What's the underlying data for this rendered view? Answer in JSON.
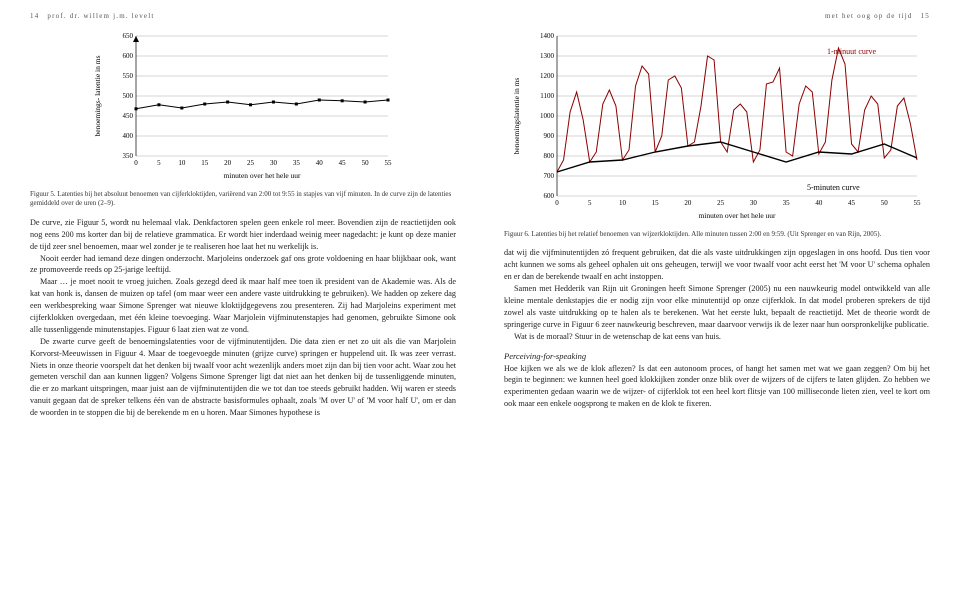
{
  "header": {
    "page_left_num": "14",
    "page_right_num": "15",
    "author": "prof. dr. willem j.m. levelt",
    "running_title": "met het oog op de tijd"
  },
  "chart_left": {
    "type": "line",
    "y_label": "benoemings-\nlatentie in ms",
    "x_label": "minuten over het hele uur",
    "x_ticks": [
      0,
      5,
      10,
      15,
      20,
      25,
      30,
      35,
      40,
      45,
      50,
      55
    ],
    "y_ticks": [
      350,
      400,
      450,
      500,
      550,
      600,
      650
    ],
    "xlim": [
      0,
      55
    ],
    "ylim": [
      350,
      650
    ],
    "series": [
      {
        "color": "#000000",
        "width": 1,
        "data": [
          468,
          478,
          470,
          480,
          485,
          478,
          485,
          480,
          490,
          488,
          485,
          490
        ]
      }
    ],
    "tick_fontsize": 7,
    "grid_color": "#aaaaaa",
    "background_color": "#ffffff"
  },
  "caption_left": "Figuur 5. Latenties bij het absoluut benoemen van cijferkloktijden, variërend van 2:00 tot 9:55 in stapjes van vijf minuten. In de curve zijn de latenties gemiddeld over de uren (2–9).",
  "body_left": [
    "De curve, zie Figuur 5, wordt nu helemaal vlak. Denkfactoren spelen geen enkele rol meer. Bovendien zijn de reactietijden ook nog eens 200 ms korter dan bij de relatieve grammatica. Er wordt hier inderdaad weinig meer nagedacht: je kunt op deze manier de tijd zeer snel benoemen, maar wel zonder je te realiseren hoe laat het nu werkelijk is.",
    "Nooit eerder had iemand deze dingen onderzocht. Marjoleins onderzoek gaf ons grote voldoening en haar blijkbaar ook, want ze promoveerde reeds op 25-jarige leeftijd.",
    "Maar … je moet nooit te vroeg juichen. Zoals gezegd deed ik maar half mee toen ik president van de Akademie was. Als de kat van honk is, dansen de muizen op tafel (om maar weer een andere vaste uitdrukking te gebruiken). We hadden op zekere dag een werkbespreking waar Simone Sprenger wat nieuwe kloktijdgegevens zou presenteren. Zij had Marjoleins experiment met cijferklokken overgedaan, met één kleine toevoeging. Waar Marjolein vijfminutenstapjes had genomen, gebruikte Simone ook alle tussenliggende minutenstapjes. Figuur 6 laat zien wat ze vond.",
    "De zwarte curve geeft de benoemingslatenties voor de vijfminutentijden. Die data zien er net zo uit als die van Marjolein Korvorst-Meeuwissen in Figuur 4. Maar de toegevoegde minuten (grijze curve) springen er huppelend uit. Ik was zeer verrast. Niets in onze theorie voorspelt dat het denken bij twaalf voor acht wezenlijk anders moet zijn dan bij tien voor acht. Waar zou het gemeten verschil dan aan kunnen liggen? Volgens Simone Sprenger ligt dat niet aan het denken bij de tussenliggende minuten, die er zo markant uitspringen, maar juist aan de vijfminutentijden die we tot dan toe steeds gebruikt hadden. Wij waren er steeds vanuit gegaan dat de spreker telkens één van de abstracte basisformules ophaalt, zoals 'M over U' of 'M voor half U', om er dan de woorden in te stoppen die bij de berekende m en u horen. Maar Simones hypothese is"
  ],
  "chart_right": {
    "type": "line",
    "y_label": "benoemingslatentie in ms",
    "x_label": "minuten over het hele uur",
    "x_ticks": [
      0,
      5,
      10,
      15,
      20,
      25,
      30,
      35,
      40,
      45,
      50,
      55
    ],
    "y_ticks": [
      600,
      700,
      800,
      900,
      1000,
      1100,
      1200,
      1300,
      1400
    ],
    "xlim": [
      0,
      55
    ],
    "ylim": [
      600,
      1400
    ],
    "series": [
      {
        "label": "1-minuut curve",
        "color": "#8b0000",
        "width": 1,
        "data": [
          720,
          780,
          1020,
          1120,
          980,
          770,
          820,
          1060,
          1130,
          1050,
          780,
          830,
          1150,
          1250,
          1210,
          820,
          900,
          1180,
          1200,
          1140,
          850,
          870,
          1050,
          1300,
          1280,
          870,
          820,
          1030,
          1060,
          1020,
          770,
          830,
          1160,
          1170,
          1240,
          820,
          800,
          1060,
          1150,
          1120,
          810,
          870,
          1180,
          1340,
          1260,
          860,
          820,
          1030,
          1100,
          1060,
          790,
          830,
          1050,
          1090,
          960,
          780
        ]
      },
      {
        "label": "5-minuten curve",
        "color": "#000000",
        "width": 1.4,
        "data": [
          720,
          770,
          780,
          820,
          850,
          870,
          820,
          770,
          820,
          810,
          860,
          790
        ]
      }
    ],
    "legend": {
      "items": [
        "1-minuut curve",
        "5-minuten curve"
      ]
    },
    "tick_fontsize": 7,
    "grid_color": "#aaaaaa",
    "background_color": "#ffffff"
  },
  "caption_right": "Figuur 6. Latenties bij het relatief benoemen van wijzerkloktijden. Alle minuten tussen 2:00 en 9:59. (Uit Sprenger en van Rijn, 2005).",
  "body_right": [
    "dat wij die vijfminutentijden zó frequent gebruiken, dat die als vaste uitdrukkingen zijn opgeslagen in ons hoofd. Dus tien voor acht kunnen we soms als geheel ophalen uit ons geheugen, terwijl we voor twaalf voor acht eerst het 'M voor U' schema ophalen en er dan de berekende twaalf en acht instoppen.",
    "Samen met Hedderik van Rijn uit Groningen heeft Simone Sprenger (2005) nu een nauwkeurig model ontwikkeld van alle kleine mentale denkstapjes die er nodig zijn voor elke minutentijd op onze cijferklok. In dat model proberen sprekers de tijd zowel als vaste uitdrukking op te halen als te berekenen. Wat het eerste lukt, bepaalt de reactietijd. Met de theorie wordt de springerige curve in Figuur 6 zeer nauwkeurig beschreven, maar daarvoor verwijs ik de lezer naar hun oorspronkelijke publicatie.",
    "Wat is de moraal? Stuur in de wetenschap de kat eens van huis."
  ],
  "section_head": "Perceiving-for-speaking",
  "body_right2": [
    "Hoe kijken we als we de klok aflezen? Is dat een autonoom proces, of hangt het samen met wat we gaan zeggen? Om bij het begin te beginnen: we kunnen heel goed klokkijken zonder onze blik over de wijzers of de cijfers te laten glijden. Zo hebben we experimenten gedaan waarin we de wijzer- of cijferklok tot een heel kort flitsje van 100 milliseconde lieten zien, veel te kort om ook maar een enkele oogsprong te maken en de klok te fixeren."
  ]
}
